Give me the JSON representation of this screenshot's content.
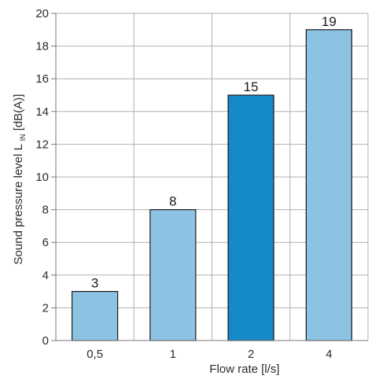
{
  "chart_data": {
    "type": "bar",
    "title": "",
    "xlabel": "Flow rate [l/s]",
    "ylabel": {
      "main": "Sound pressure level L",
      "subscript": "IN",
      "suffix": " [dB(A)]"
    },
    "categories": [
      "0,5",
      "1",
      "2",
      "4"
    ],
    "values": [
      3,
      8,
      15,
      19
    ],
    "data_labels": [
      "3",
      "8",
      "15",
      "19"
    ],
    "highlight_index": 2,
    "ylim": [
      0,
      20
    ],
    "yticks": [
      0,
      2,
      4,
      6,
      8,
      10,
      12,
      14,
      16,
      18,
      20
    ],
    "grid": true,
    "legend": "none",
    "colors": {
      "bar": "#8cc3e3",
      "bar_highlight": "#1689ca",
      "bar_outline": "#1a1a1a",
      "grid": "#b0b0b0",
      "axis": "#7a7a7a",
      "text": "#2b2b2b"
    }
  }
}
